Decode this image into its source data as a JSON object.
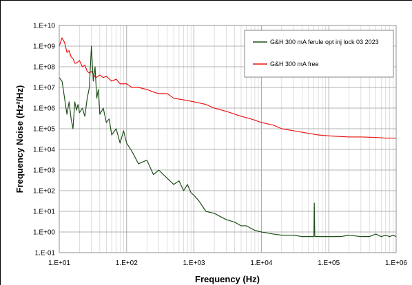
{
  "chart_data": {
    "type": "line",
    "xlabel": "Frequency (Hz)",
    "ylabel": "Frequency Noise (Hz²/Hz)",
    "xscale": "log",
    "yscale": "log",
    "xlim": [
      10,
      1000000
    ],
    "ylim": [
      0.1,
      10000000000
    ],
    "x_ticks": [
      "1.E+01",
      "1.E+02",
      "1.E+03",
      "1.E+04",
      "1.E+05",
      "1.E+06"
    ],
    "y_ticks": [
      "1.E-01",
      "1.E+00",
      "1.E+01",
      "1.E+02",
      "1.E+03",
      "1.E+04",
      "1.E+05",
      "1.E+06",
      "1.E+07",
      "1.E+08",
      "1.E+09",
      "1.E+10"
    ],
    "grid": "major and minor (log)",
    "legend_position": "top-right",
    "series": [
      {
        "name": "G&H 300 mA ferule opt inj lock 03 2023",
        "color": "#1f4e1a",
        "x": [
          10,
          11,
          12,
          13,
          14,
          15,
          16,
          17,
          18,
          19,
          20,
          22,
          24,
          26,
          28,
          30,
          32,
          34,
          36,
          38,
          40,
          45,
          50,
          55,
          60,
          70,
          80,
          90,
          100,
          120,
          150,
          200,
          250,
          300,
          400,
          500,
          600,
          700,
          800,
          900,
          1000,
          1200,
          1500,
          2000,
          3000,
          4000,
          5000,
          6000,
          7000,
          8000,
          10000,
          15000,
          20000,
          30000,
          40000,
          50000,
          60000,
          61000,
          62000,
          70000,
          80000,
          100000,
          150000,
          200000,
          300000,
          400000,
          500000,
          600000,
          700000,
          800000,
          900000,
          1000000
        ],
        "y": [
          30000000,
          20000000,
          3000000,
          500000,
          2000000,
          300000,
          100000,
          2000000,
          800000,
          1500000,
          600000,
          1000000,
          400000,
          3000000,
          10000000,
          1000000000,
          20000000,
          100000000,
          3000000,
          8000000,
          500000,
          1000000,
          200000,
          300000,
          50000,
          100000,
          20000,
          80000,
          20000,
          8000,
          2000,
          3000,
          600,
          1000,
          400,
          200,
          300,
          100,
          200,
          80,
          60,
          30,
          10,
          8,
          4,
          3,
          2,
          2,
          1.5,
          1.2,
          1,
          0.8,
          0.7,
          0.7,
          0.6,
          0.6,
          0.6,
          25,
          0.6,
          0.6,
          0.6,
          0.6,
          0.6,
          0.7,
          0.6,
          0.6,
          0.8,
          0.6,
          0.7,
          0.6,
          0.7,
          0.6
        ]
      },
      {
        "name": "G&H 300 mA free",
        "color": "#ee1111",
        "x": [
          10,
          11,
          12,
          13,
          14,
          15,
          16,
          17,
          18,
          20,
          22,
          24,
          26,
          28,
          30,
          35,
          40,
          45,
          50,
          60,
          70,
          80,
          100,
          120,
          150,
          200,
          250,
          300,
          400,
          500,
          700,
          1000,
          1500,
          2000,
          3000,
          5000,
          7000,
          10000,
          15000,
          20000,
          30000,
          50000,
          70000,
          100000,
          150000,
          200000,
          300000,
          500000,
          700000,
          1000000
        ],
        "y": [
          1000000000,
          2500000000,
          1500000000,
          500000000,
          600000000,
          300000000,
          250000000,
          150000000,
          150000000,
          200000000,
          100000000,
          120000000,
          60000000,
          50000000,
          60000000,
          30000000,
          40000000,
          30000000,
          35000000,
          20000000,
          25000000,
          15000000,
          15000000,
          10000000,
          10000000,
          8000000,
          6000000,
          5000000,
          5000000,
          3000000,
          2500000,
          2000000,
          1500000,
          1000000,
          700000,
          400000,
          300000,
          200000,
          150000,
          100000,
          80000,
          60000,
          50000,
          45000,
          42000,
          40000,
          40000,
          38000,
          35000,
          35000
        ]
      }
    ]
  }
}
